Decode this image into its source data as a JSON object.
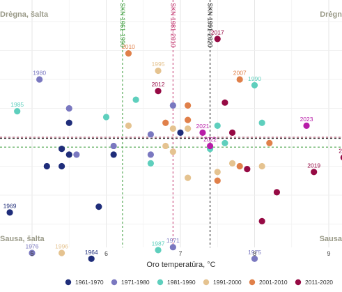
{
  "chart_data": {
    "type": "scatter",
    "xlabel": "Oro temperatūra, °C",
    "ylabel": "",
    "xlim": [
      4.5,
      9.2
    ],
    "ylim": [
      -24.5,
      17.5
    ],
    "x_ticks": [
      "5",
      "6",
      "7",
      "8",
      "9"
    ],
    "grid": true,
    "legend_position": "bottom",
    "corner_labels": {
      "top_left": "Drėgna, šalta",
      "top_right": "Drėgn",
      "bottom_left": "Sausa, šalta",
      "bottom_right": "Sausa"
    },
    "colors": {
      "ref_1961_1990": "#3a9a3a",
      "ref_1981_2010": "#c0306a",
      "ref_1991_2020": "#111111",
      "hline_dark": "#8a1838",
      "hline_green": "#3a9a3a"
    },
    "reference_lines": [
      {
        "label": "SKN 1961-1990",
        "x": 6.22,
        "y": -1.7,
        "color_key": "ref_1961_1990"
      },
      {
        "label": "SKN 1981-2010",
        "x": 6.9,
        "y": -0.2,
        "color_key": "ref_1981_2010"
      },
      {
        "label": "SKN 1991-2020",
        "x": 7.4,
        "y": 0.0,
        "color_key": "ref_1991_2020"
      }
    ],
    "series": [
      {
        "name": "1961-1970",
        "color": "#1f2d7a",
        "points": [
          {
            "x": 4.7,
            "y": -13,
            "label": "1969"
          },
          {
            "x": 5.8,
            "y": -21,
            "label": "1964"
          },
          {
            "x": 5.5,
            "y": 2.5,
            "label": ""
          },
          {
            "x": 5.4,
            "y": -2,
            "label": ""
          },
          {
            "x": 5.2,
            "y": -5,
            "label": ""
          },
          {
            "x": 5.4,
            "y": -5,
            "label": ""
          },
          {
            "x": 5.5,
            "y": -3,
            "label": ""
          },
          {
            "x": 6.1,
            "y": -3,
            "label": ""
          },
          {
            "x": 5.9,
            "y": -12,
            "label": ""
          },
          {
            "x": 7.0,
            "y": 0.8,
            "label": ""
          }
        ]
      },
      {
        "name": "1971-1980",
        "color": "#7a78c0",
        "points": [
          {
            "x": 5.1,
            "y": 10,
            "label": "1980"
          },
          {
            "x": 5.0,
            "y": -20,
            "label": "1976"
          },
          {
            "x": 6.9,
            "y": -19,
            "label": "1971"
          },
          {
            "x": 8.0,
            "y": -21,
            "label": "1975"
          },
          {
            "x": 5.5,
            "y": 5,
            "label": ""
          },
          {
            "x": 6.1,
            "y": -1.5,
            "label": ""
          },
          {
            "x": 6.9,
            "y": 5.5,
            "label": ""
          },
          {
            "x": 6.6,
            "y": 0.5,
            "label": ""
          },
          {
            "x": 6.6,
            "y": -3,
            "label": ""
          },
          {
            "x": 5.6,
            "y": -3,
            "label": ""
          }
        ]
      },
      {
        "name": "1981-1990",
        "color": "#5ecfbd",
        "points": [
          {
            "x": 4.8,
            "y": 4.5,
            "label": "1985"
          },
          {
            "x": 8.0,
            "y": 9,
            "label": "1990"
          },
          {
            "x": 6.7,
            "y": -19.5,
            "label": "1987"
          },
          {
            "x": 6.4,
            "y": 6.5,
            "label": ""
          },
          {
            "x": 6.0,
            "y": 3.5,
            "label": ""
          },
          {
            "x": 6.6,
            "y": -4.5,
            "label": ""
          },
          {
            "x": 7.5,
            "y": 2,
            "label": ""
          },
          {
            "x": 8.1,
            "y": 2.5,
            "label": ""
          },
          {
            "x": 7.4,
            "y": -2,
            "label": ""
          },
          {
            "x": 7.6,
            "y": -1,
            "label": ""
          }
        ]
      },
      {
        "name": "1991-2000",
        "color": "#e5c390",
        "points": [
          {
            "x": 5.4,
            "y": -20,
            "label": "1996"
          },
          {
            "x": 6.7,
            "y": 11.5,
            "label": "1995"
          },
          {
            "x": 6.3,
            "y": 2,
            "label": ""
          },
          {
            "x": 6.9,
            "y": 1.5,
            "label": ""
          },
          {
            "x": 7.1,
            "y": 1.5,
            "label": ""
          },
          {
            "x": 6.8,
            "y": -1.5,
            "label": ""
          },
          {
            "x": 7.7,
            "y": -4.5,
            "label": ""
          },
          {
            "x": 7.5,
            "y": -6,
            "label": ""
          },
          {
            "x": 8.1,
            "y": -5,
            "label": ""
          },
          {
            "x": 7.1,
            "y": -7,
            "label": ""
          },
          {
            "x": 6.9,
            "y": -2.5,
            "label": ""
          }
        ]
      },
      {
        "name": "2001-2010",
        "color": "#e0804a",
        "points": [
          {
            "x": 6.3,
            "y": 14.5,
            "label": "2010"
          },
          {
            "x": 7.8,
            "y": 10,
            "label": "2007"
          },
          {
            "x": 7.1,
            "y": 5.5,
            "label": ""
          },
          {
            "x": 6.8,
            "y": 2.5,
            "label": ""
          },
          {
            "x": 7.1,
            "y": 3,
            "label": ""
          },
          {
            "x": 7.8,
            "y": -5,
            "label": ""
          },
          {
            "x": 7.5,
            "y": -7.5,
            "label": ""
          },
          {
            "x": 8.2,
            "y": -1,
            "label": ""
          }
        ]
      },
      {
        "name": "2011-2020",
        "color": "#960a44",
        "points": [
          {
            "x": 7.5,
            "y": 17,
            "label": "2017"
          },
          {
            "x": 6.7,
            "y": 8,
            "label": "2012"
          },
          {
            "x": 8.8,
            "y": -6,
            "label": "2019"
          },
          {
            "x": 9.2,
            "y": -3.5,
            "label": "20"
          },
          {
            "x": 7.6,
            "y": 6,
            "label": ""
          },
          {
            "x": 7.7,
            "y": 0.8,
            "label": ""
          },
          {
            "x": 7.9,
            "y": -5.5,
            "label": ""
          },
          {
            "x": 8.3,
            "y": -9.5,
            "label": ""
          },
          {
            "x": 8.1,
            "y": -14.5,
            "label": ""
          }
        ]
      },
      {
        "name": "",
        "color": "#b81ca8",
        "points": [
          {
            "x": 8.7,
            "y": 2,
            "label": "2023"
          },
          {
            "x": 7.3,
            "y": 0.8,
            "label": "2021"
          },
          {
            "x": 7.4,
            "y": -1.5,
            "label": "2022"
          }
        ]
      }
    ]
  }
}
